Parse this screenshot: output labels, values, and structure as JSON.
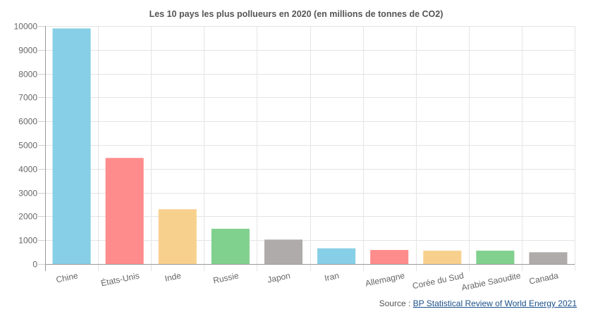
{
  "chart_data": {
    "type": "bar",
    "title": "Les 10 pays les plus pollueurs en 2020 (en millions de tonnes de CO2)",
    "xlabel": "",
    "ylabel": "",
    "ylim": [
      0,
      10000
    ],
    "yticks": [
      "0",
      "1000",
      "2000",
      "3000",
      "4000",
      "5000",
      "6000",
      "7000",
      "8000",
      "9000",
      "10000"
    ],
    "ytick_values": [
      0,
      1000,
      2000,
      3000,
      4000,
      5000,
      6000,
      7000,
      8000,
      9000,
      10000
    ],
    "grid": true,
    "legend": "none",
    "categories": [
      "Chine",
      "États-Unis",
      "Inde",
      "Russie",
      "Japon",
      "Iran",
      "Allemagne",
      "Corée du Sud",
      "Arabie Saoudite",
      "Canada"
    ],
    "values": [
      9899,
      4457,
      2302,
      1482,
      1027,
      660,
      590,
      560,
      560,
      495
    ],
    "colors": [
      "#87cfe6",
      "#ff8c8c",
      "#f8d08e",
      "#80d08e",
      "#b0abab",
      "#87cfe6",
      "#ff8c8c",
      "#f8d08e",
      "#80d08e",
      "#b0abab"
    ]
  },
  "source": {
    "prefix": "Source : ",
    "link_text": "BP Statistical Review of World Energy 2021"
  }
}
